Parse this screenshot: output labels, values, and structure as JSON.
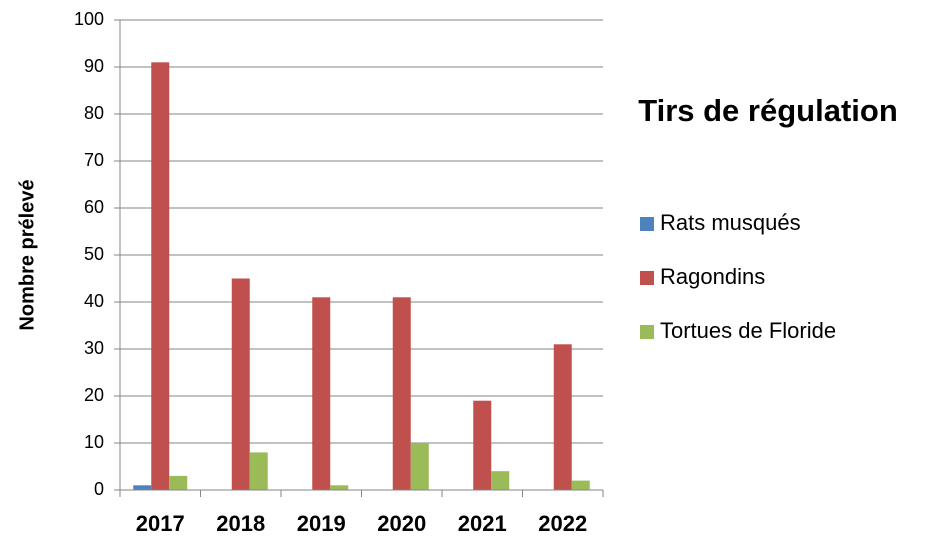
{
  "chart_data": {
    "type": "bar",
    "title": "Tirs de régulation",
    "y_label": "Nombre prélevé",
    "categories": [
      "2017",
      "2018",
      "2019",
      "2020",
      "2021",
      "2022"
    ],
    "series": [
      {
        "name": "Rats musqués",
        "color": "#4f81bd",
        "values": [
          1,
          0,
          0,
          0,
          0,
          0
        ]
      },
      {
        "name": "Ragondins",
        "color": "#c0504d",
        "values": [
          91,
          45,
          41,
          41,
          19,
          31
        ]
      },
      {
        "name": "Tortues de Floride",
        "color": "#9bbb59",
        "values": [
          3,
          8,
          1,
          10,
          4,
          2
        ]
      }
    ],
    "ylim": [
      0,
      100
    ],
    "yticks": [
      0,
      10,
      20,
      30,
      40,
      50,
      60,
      70,
      80,
      90,
      100
    ],
    "grid": true,
    "legend": "right"
  }
}
